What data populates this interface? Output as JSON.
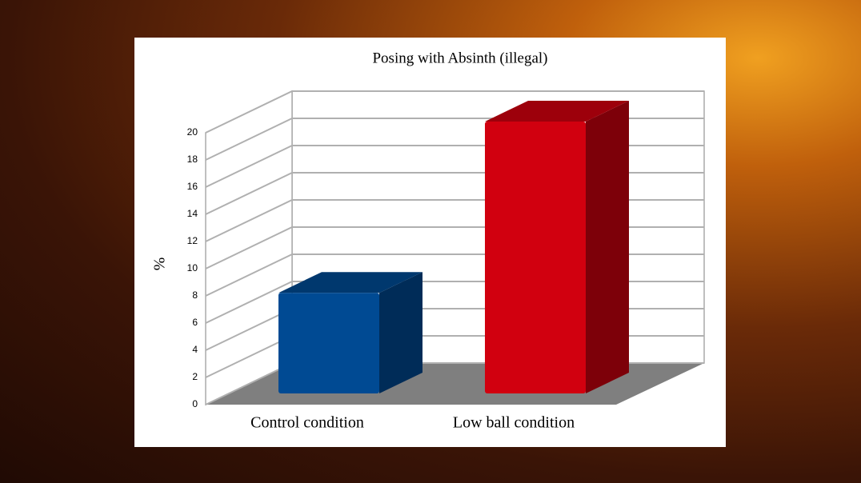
{
  "chart_data": {
    "type": "bar3d",
    "title": "Posing with Absinth (illegal)",
    "ylabel": "%",
    "categories": [
      "Control condition",
      "Low ball condition"
    ],
    "values": [
      7.4,
      20
    ],
    "colors": [
      "#004a93",
      "#d1000f"
    ],
    "ylim": [
      0,
      20
    ],
    "yticks": [
      0,
      2,
      4,
      6,
      8,
      10,
      12,
      14,
      16,
      18,
      20
    ],
    "grid": true
  }
}
